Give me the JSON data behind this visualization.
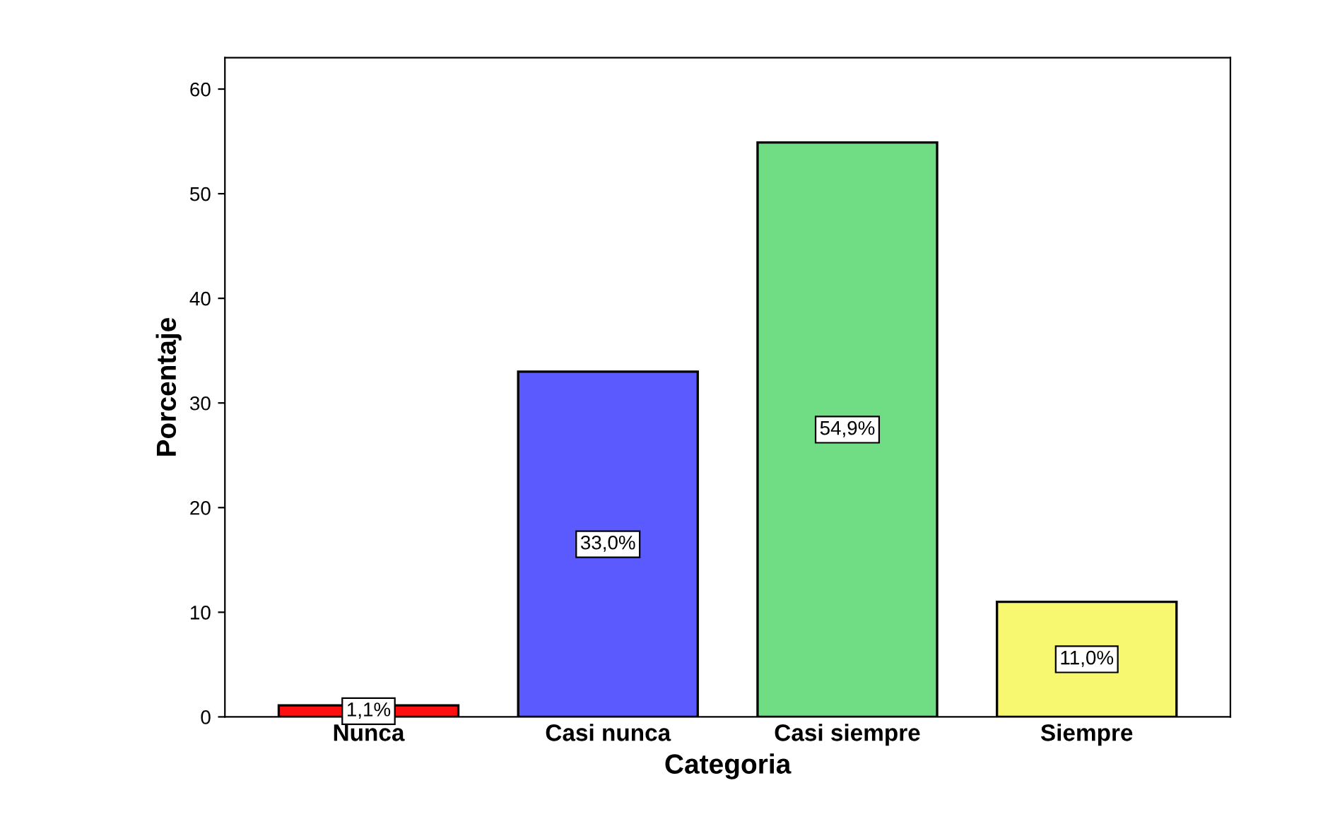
{
  "chart_data": {
    "type": "bar",
    "xlabel": "Categoria",
    "ylabel": "Porcentaje",
    "categories": [
      "Nunca",
      "Casi nunca",
      "Casi siempre",
      "Siempre"
    ],
    "values": [
      1.1,
      33.0,
      54.9,
      11.0
    ],
    "colors": [
      "#ff1010",
      "#5a5aff",
      "#70dc84",
      "#f8f870"
    ],
    "value_labels": [
      "1,1%",
      "33,0%",
      "54,9%",
      "11,0%"
    ],
    "ylim": [
      0,
      63
    ],
    "yticks": [
      0,
      10,
      20,
      30,
      40,
      50,
      60
    ],
    "grid": false,
    "legend": false
  }
}
